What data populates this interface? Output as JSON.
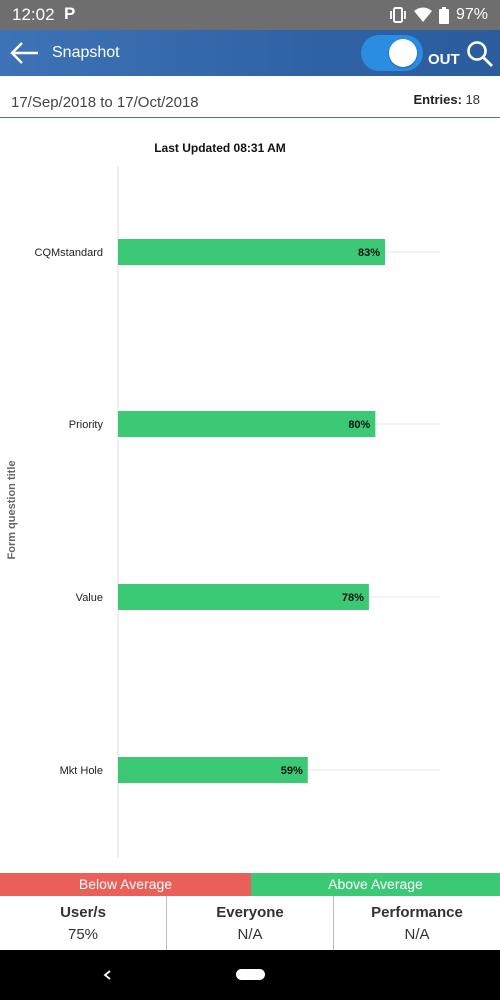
{
  "status_bar": {
    "time": "12:02",
    "notification_letter": "P",
    "battery": "97%"
  },
  "app_bar": {
    "title": "Snapshot",
    "toggle_label": "OUT",
    "toggle_on": true
  },
  "date_row": {
    "range": "17/Sep/2018 to 17/Oct/2018",
    "entries_label": "Entries:",
    "entries_value": "18"
  },
  "chart_data": {
    "type": "bar",
    "orientation": "horizontal",
    "title": "Last Updated 08:31 AM",
    "ylabel": "Form question title",
    "xlabel": "",
    "categories": [
      "CQMstandard",
      "Priority",
      "Value",
      "Mkt Hole"
    ],
    "values": [
      83,
      80,
      78,
      59
    ],
    "value_labels": [
      "83%",
      "80%",
      "78%",
      "59%"
    ],
    "xlim": [
      0,
      100
    ],
    "bar_color": "#3cc975",
    "grid": true
  },
  "legend": {
    "below_label": "Below Average",
    "above_label": "Above Average",
    "below_color": "#ea5f57",
    "above_color": "#3cc975"
  },
  "stats": [
    {
      "label": "User/s",
      "value": "75%"
    },
    {
      "label": "Everyone",
      "value": "N/A"
    },
    {
      "label": "Performance",
      "value": "N/A"
    }
  ]
}
